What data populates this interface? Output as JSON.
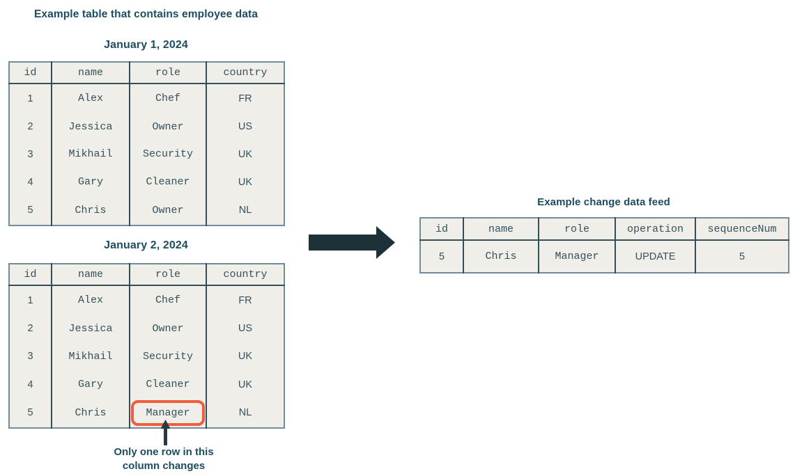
{
  "page": {
    "title": "Example table that contains employee data",
    "callout": {
      "line1": "Only one row in this",
      "line2": "column changes"
    }
  },
  "colors": {
    "heading": "#1d4d60",
    "table_background": "#f0eee9",
    "table_outer_border": "#6f8d99",
    "table_inner_border": "#324e59",
    "cell_text": "#35505a",
    "highlight": "#f25b3e",
    "arrow": "#1e3038"
  },
  "tables": {
    "jan1": {
      "title": "January 1, 2024",
      "headers": [
        "id",
        "name",
        "role",
        "country"
      ],
      "rows": [
        [
          "1",
          "Alex",
          "Chef",
          "FR"
        ],
        [
          "2",
          "Jessica",
          "Owner",
          "US"
        ],
        [
          "3",
          "Mikhail",
          "Security",
          "UK"
        ],
        [
          "4",
          "Gary",
          "Cleaner",
          "UK"
        ],
        [
          "5",
          "Chris",
          "Owner",
          "NL"
        ]
      ]
    },
    "jan2": {
      "title": "January 2, 2024",
      "headers": [
        "id",
        "name",
        "role",
        "country"
      ],
      "rows": [
        [
          "1",
          "Alex",
          "Chef",
          "FR"
        ],
        [
          "2",
          "Jessica",
          "Owner",
          "US"
        ],
        [
          "3",
          "Mikhail",
          "Security",
          "UK"
        ],
        [
          "4",
          "Gary",
          "Cleaner",
          "UK"
        ],
        [
          "5",
          "Chris",
          "Manager",
          "NL"
        ]
      ],
      "highlight": {
        "row": 4,
        "column": "role"
      }
    },
    "feed": {
      "title": "Example change data feed",
      "headers": [
        "id",
        "name",
        "role",
        "operation",
        "sequenceNum"
      ],
      "rows": [
        [
          "5",
          "Chris",
          "Manager",
          "UPDATE",
          "5"
        ]
      ]
    }
  }
}
